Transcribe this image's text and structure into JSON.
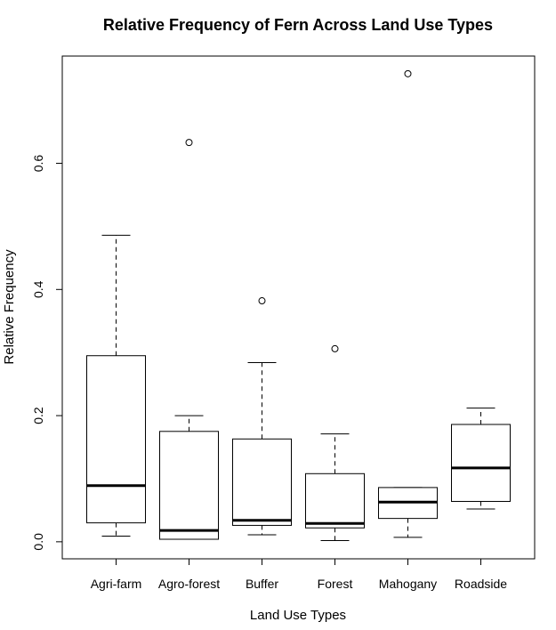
{
  "chart_data": {
    "type": "boxplot",
    "title": "Relative Frequency of Fern Across Land Use Types",
    "xlabel": "Land Use Types",
    "ylabel": "Relative Frequency",
    "ylim": [
      -0.027,
      0.77
    ],
    "yticks": [
      0.0,
      0.2,
      0.4,
      0.6
    ],
    "ytick_labels": [
      "0.0",
      "0.2",
      "0.4",
      "0.6"
    ],
    "grid": false,
    "categories": [
      "Agri-farm",
      "Agro-forest",
      "Buffer",
      "Forest",
      "Mahogany",
      "Roadside"
    ],
    "boxes": [
      {
        "category": "Agri-farm",
        "whisker_low": 0.009,
        "q1": 0.03,
        "median": 0.089,
        "q3": 0.295,
        "whisker_high": 0.486,
        "outliers": []
      },
      {
        "category": "Agro-forest",
        "whisker_low": 0.004,
        "q1": 0.004,
        "median": 0.018,
        "q3": 0.175,
        "whisker_high": 0.2,
        "outliers": [
          0.633
        ]
      },
      {
        "category": "Buffer",
        "whisker_low": 0.011,
        "q1": 0.026,
        "median": 0.034,
        "q3": 0.163,
        "whisker_high": 0.284,
        "outliers": [
          0.382
        ]
      },
      {
        "category": "Forest",
        "whisker_low": 0.002,
        "q1": 0.022,
        "median": 0.029,
        "q3": 0.108,
        "whisker_high": 0.171,
        "outliers": [
          0.306
        ]
      },
      {
        "category": "Mahogany",
        "whisker_low": 0.007,
        "q1": 0.037,
        "median": 0.063,
        "q3": 0.086,
        "whisker_high": 0.086,
        "outliers": [
          0.742
        ]
      },
      {
        "category": "Roadside",
        "whisker_low": 0.052,
        "q1": 0.064,
        "median": 0.117,
        "q3": 0.186,
        "whisker_high": 0.212,
        "outliers": []
      }
    ]
  }
}
